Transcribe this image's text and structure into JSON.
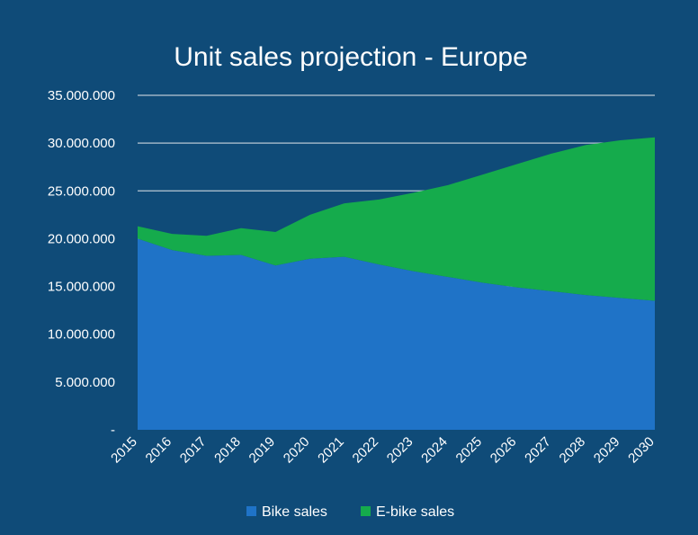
{
  "colors": {
    "background": "#0f4b78",
    "bike": "#1f73c7",
    "ebike": "#15ab4c",
    "grid": "#b9c7d3",
    "text": "#ffffff"
  },
  "chart_data": {
    "type": "area",
    "stacked": true,
    "title": "Unit sales projection - Europe",
    "xlabel": "",
    "ylabel": "",
    "categories": [
      "2015",
      "2016",
      "2017",
      "2018",
      "2019",
      "2020",
      "2021",
      "2022",
      "2023",
      "2024",
      "2025",
      "2026",
      "2027",
      "2028",
      "2029",
      "2030"
    ],
    "ylim": [
      0,
      35000000
    ],
    "y_ticks": [
      0,
      5000000,
      10000000,
      15000000,
      20000000,
      25000000,
      30000000,
      35000000
    ],
    "y_tick_labels": [
      "-",
      "5.000.000",
      "10.000.000",
      "15.000.000",
      "20.000.000",
      "25.000.000",
      "30.000.000",
      "35.000.000"
    ],
    "grid": true,
    "legend_position": "bottom",
    "series": [
      {
        "name": "Bike sales",
        "color": "#1f73c7",
        "values": [
          20000000,
          18800000,
          18200000,
          18300000,
          17200000,
          17900000,
          18100000,
          17300000,
          16600000,
          16000000,
          15400000,
          14900000,
          14500000,
          14100000,
          13800000,
          13500000
        ]
      },
      {
        "name": "E-bike sales",
        "color": "#15ab4c",
        "values": [
          1300000,
          1700000,
          2100000,
          2800000,
          3500000,
          4600000,
          5600000,
          6800000,
          8200000,
          9600000,
          11300000,
          12900000,
          14400000,
          15700000,
          16500000,
          17100000
        ]
      }
    ]
  }
}
